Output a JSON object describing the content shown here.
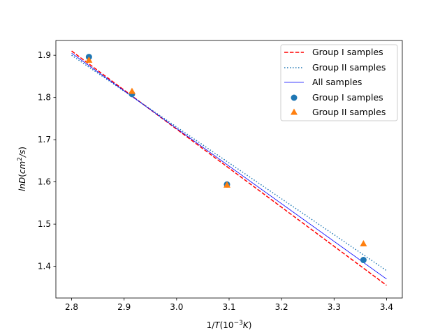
{
  "chart_data": {
    "type": "scatter",
    "title": "",
    "xlabel": "1/T(10^{-3}K)",
    "ylabel": "lnD(cm^{2}/s)",
    "xlim": [
      2.77,
      3.43
    ],
    "ylim": [
      1.325,
      1.935
    ],
    "x_ticks": [
      2.8,
      2.9,
      3.0,
      3.1,
      3.2,
      3.3,
      3.4
    ],
    "y_ticks": [
      1.4,
      1.5,
      1.6,
      1.7,
      1.8,
      1.9
    ],
    "grid": false,
    "legend_position": "top-right",
    "lines": [
      {
        "name": "Group I samples",
        "style": "dashed",
        "color": "#ff0000",
        "x": [
          2.8,
          3.4
        ],
        "y": [
          1.91,
          1.355
        ]
      },
      {
        "name": "Group II samples",
        "style": "dotted",
        "color": "#1f77b4",
        "x": [
          2.8,
          3.4
        ],
        "y": [
          1.9,
          1.39
        ]
      },
      {
        "name": "All samples",
        "style": "solid",
        "color": "#0000ff",
        "x": [
          2.8,
          3.4
        ],
        "y": [
          1.905,
          1.37
        ]
      }
    ],
    "scatter": [
      {
        "name": "Group I samples",
        "marker": "circle",
        "color": "#1f77b4",
        "x": [
          2.833,
          2.915,
          3.096,
          3.356
        ],
        "y": [
          1.896,
          1.808,
          1.594,
          1.415
        ]
      },
      {
        "name": "Group II samples",
        "marker": "triangle",
        "color": "#ff7f0e",
        "x": [
          2.833,
          2.915,
          3.096,
          3.356
        ],
        "y": [
          1.889,
          1.815,
          1.593,
          1.454
        ]
      }
    ]
  }
}
